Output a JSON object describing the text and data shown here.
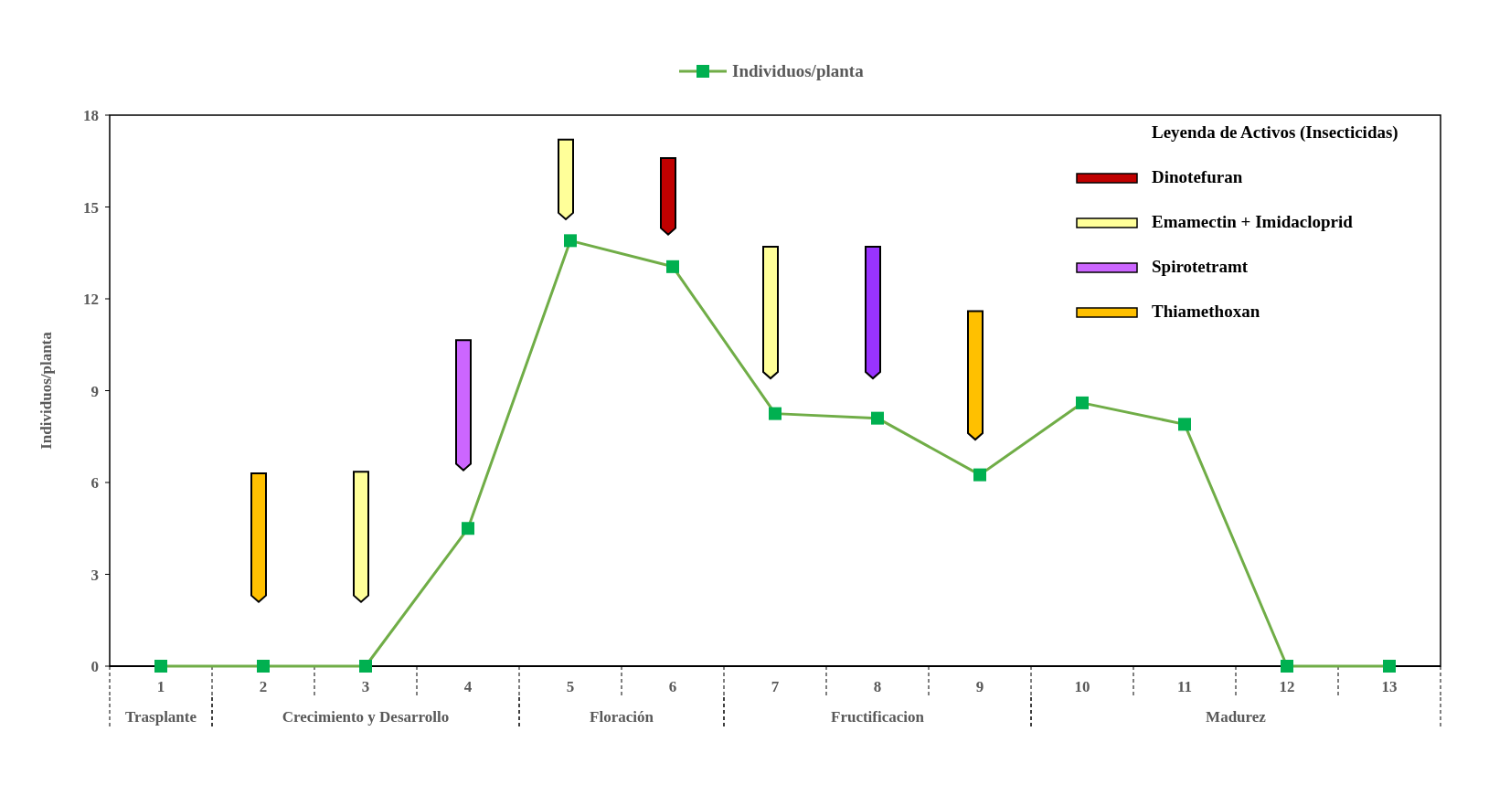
{
  "chart_data": {
    "type": "line",
    "categories": [
      "1",
      "2",
      "3",
      "4",
      "5",
      "6",
      "7",
      "8",
      "9",
      "10",
      "11",
      "12",
      "13"
    ],
    "ylabel": "Individuos/planta",
    "ylim": [
      0,
      18
    ],
    "yticks": [
      0,
      3,
      6,
      9,
      12,
      15,
      18
    ],
    "grid": false,
    "legend": "top",
    "marker": "square",
    "line_style": "solid",
    "legend_title": "Leyenda de Activos (Insecticidas)",
    "series": [
      {
        "name": "Individuos/planta",
        "color": "#70ad47",
        "values": [
          0,
          0,
          0,
          4.5,
          13.9,
          13.05,
          8.25,
          8.1,
          6.25,
          8.6,
          7.9,
          0,
          0
        ]
      },
      {
        "name": "Dinotefuran",
        "type": "bar",
        "color": "#c00000",
        "base": [
          null,
          null,
          null,
          null,
          null,
          14.1,
          null,
          null,
          null,
          null,
          null,
          null,
          null
        ],
        "values": [
          null,
          null,
          null,
          null,
          null,
          2.5,
          null,
          null,
          null,
          null,
          null,
          null,
          null
        ]
      },
      {
        "name": "Emamectin + Imidacloprid",
        "type": "bar",
        "color": "#ffff99",
        "base": [
          null,
          null,
          2.1,
          null,
          14.6,
          null,
          9.4,
          null,
          null,
          null,
          null,
          null,
          null
        ],
        "values": [
          null,
          null,
          4.25,
          null,
          2.6,
          null,
          4.3,
          null,
          null,
          null,
          null,
          null,
          null
        ]
      },
      {
        "name": "Spirotetramt",
        "type": "bar",
        "color": "#cc66ff",
        "colors": [
          null,
          null,
          null,
          "#cc66ff",
          null,
          null,
          null,
          "#9933ff",
          null,
          null,
          null,
          null,
          null
        ],
        "base": [
          null,
          null,
          null,
          6.4,
          null,
          null,
          null,
          9.4,
          null,
          null,
          null,
          null,
          null
        ],
        "values": [
          null,
          null,
          null,
          4.25,
          null,
          null,
          null,
          4.3,
          null,
          null,
          null,
          null,
          null
        ]
      },
      {
        "name": "Thiamethoxan",
        "type": "bar",
        "color": "#ffc000",
        "base": [
          null,
          2.1,
          null,
          null,
          null,
          null,
          null,
          null,
          7.4,
          null,
          null,
          null,
          null
        ],
        "values": [
          null,
          4.2,
          null,
          null,
          null,
          null,
          null,
          null,
          4.2,
          null,
          null,
          null,
          null
        ]
      }
    ],
    "annotations": [
      "Trasplante",
      "Crecimiento y Desarrollo",
      "Floración",
      "Fructificacion",
      "Madurez"
    ]
  }
}
